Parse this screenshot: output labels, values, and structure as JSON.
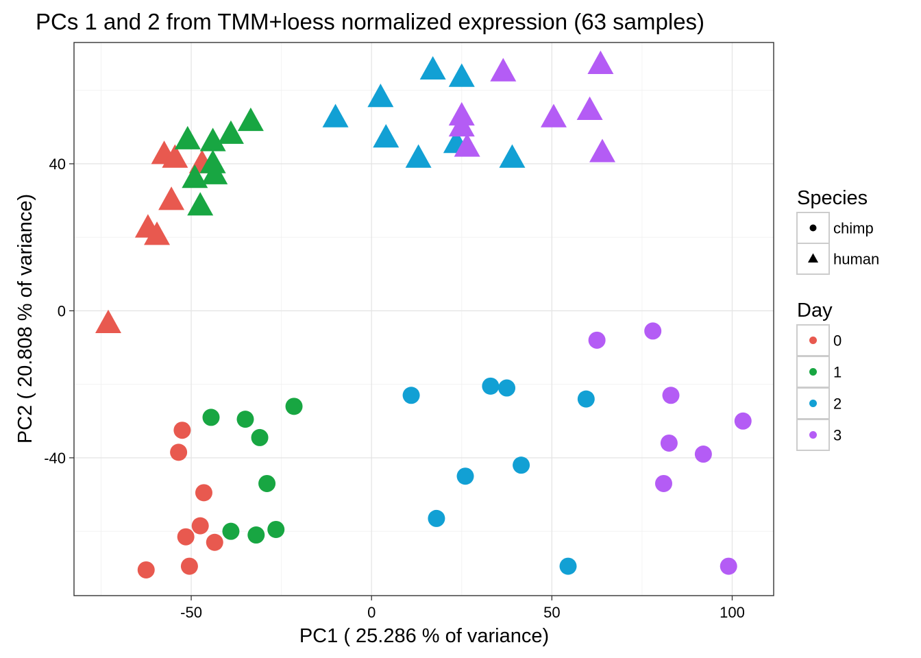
{
  "chart_data": {
    "type": "scatter",
    "title": "PCs 1 and 2 from TMM+loess normalized expression (63 samples)",
    "xlabel": "PC1 ( 25.286 % of variance)",
    "ylabel": "PC2 ( 20.808 % of variance)",
    "xlim": [
      -82.5,
      111.5
    ],
    "ylim": [
      -77.5,
      73
    ],
    "x_ticks": [
      -50,
      0,
      50,
      100
    ],
    "x_tick_labels": [
      "-50",
      "0",
      "50",
      "100"
    ],
    "y_ticks": [
      -40,
      0,
      40
    ],
    "y_tick_labels": [
      "-40",
      "0",
      "40"
    ],
    "grid": true,
    "legends": {
      "species": {
        "title": "Species",
        "entries": [
          {
            "label": "chimp",
            "shape": "circle"
          },
          {
            "label": "human",
            "shape": "triangle"
          }
        ]
      },
      "day": {
        "title": "Day",
        "entries": [
          {
            "label": "0",
            "color": "#E8594F"
          },
          {
            "label": "1",
            "color": "#18A642"
          },
          {
            "label": "2",
            "color": "#12A0D4"
          },
          {
            "label": "3",
            "color": "#B45CF5"
          }
        ]
      }
    },
    "legend_position": "right",
    "points": [
      {
        "x": -73.0,
        "y": -3.5,
        "species": "human",
        "day": "0"
      },
      {
        "x": -62.0,
        "y": 22.5,
        "species": "human",
        "day": "0"
      },
      {
        "x": -59.5,
        "y": 20.5,
        "species": "human",
        "day": "0"
      },
      {
        "x": -55.5,
        "y": 30.0,
        "species": "human",
        "day": "0"
      },
      {
        "x": -57.5,
        "y": 42.5,
        "species": "human",
        "day": "0"
      },
      {
        "x": -54.5,
        "y": 41.5,
        "species": "human",
        "day": "0"
      },
      {
        "x": -47.0,
        "y": 40.0,
        "species": "human",
        "day": "0"
      },
      {
        "x": -51.0,
        "y": 46.5,
        "species": "human",
        "day": "1"
      },
      {
        "x": -44.0,
        "y": 46.0,
        "species": "human",
        "day": "1"
      },
      {
        "x": -39.0,
        "y": 48.0,
        "species": "human",
        "day": "1"
      },
      {
        "x": -33.5,
        "y": 51.5,
        "species": "human",
        "day": "1"
      },
      {
        "x": -44.0,
        "y": 40.0,
        "species": "human",
        "day": "1"
      },
      {
        "x": -49.0,
        "y": 36.0,
        "species": "human",
        "day": "1"
      },
      {
        "x": -43.5,
        "y": 37.0,
        "species": "human",
        "day": "1"
      },
      {
        "x": -47.5,
        "y": 28.5,
        "species": "human",
        "day": "1"
      },
      {
        "x": -10.0,
        "y": 52.5,
        "species": "human",
        "day": "2"
      },
      {
        "x": 2.5,
        "y": 58.0,
        "species": "human",
        "day": "2"
      },
      {
        "x": 4.0,
        "y": 47.0,
        "species": "human",
        "day": "2"
      },
      {
        "x": 17.0,
        "y": 65.5,
        "species": "human",
        "day": "2"
      },
      {
        "x": 25.0,
        "y": 63.5,
        "species": "human",
        "day": "2"
      },
      {
        "x": 13.0,
        "y": 41.5,
        "species": "human",
        "day": "2"
      },
      {
        "x": 23.5,
        "y": 45.5,
        "species": "human",
        "day": "2"
      },
      {
        "x": 39.0,
        "y": 41.5,
        "species": "human",
        "day": "2"
      },
      {
        "x": 36.5,
        "y": 65.0,
        "species": "human",
        "day": "3"
      },
      {
        "x": 63.5,
        "y": 67.0,
        "species": "human",
        "day": "3"
      },
      {
        "x": 25.0,
        "y": 53.0,
        "species": "human",
        "day": "3"
      },
      {
        "x": 25.0,
        "y": 50.0,
        "species": "human",
        "day": "3"
      },
      {
        "x": 26.5,
        "y": 44.5,
        "species": "human",
        "day": "3"
      },
      {
        "x": 50.5,
        "y": 52.5,
        "species": "human",
        "day": "3"
      },
      {
        "x": 60.5,
        "y": 54.5,
        "species": "human",
        "day": "3"
      },
      {
        "x": 64.0,
        "y": 43.0,
        "species": "human",
        "day": "3"
      },
      {
        "x": -52.5,
        "y": -32.5,
        "species": "chimp",
        "day": "0"
      },
      {
        "x": -53.5,
        "y": -38.5,
        "species": "chimp",
        "day": "0"
      },
      {
        "x": -46.5,
        "y": -49.5,
        "species": "chimp",
        "day": "0"
      },
      {
        "x": -47.5,
        "y": -58.5,
        "species": "chimp",
        "day": "0"
      },
      {
        "x": -51.5,
        "y": -61.5,
        "species": "chimp",
        "day": "0"
      },
      {
        "x": -43.5,
        "y": -63.0,
        "species": "chimp",
        "day": "0"
      },
      {
        "x": -62.5,
        "y": -70.5,
        "species": "chimp",
        "day": "0"
      },
      {
        "x": -50.5,
        "y": -69.5,
        "species": "chimp",
        "day": "0"
      },
      {
        "x": -44.5,
        "y": -29.0,
        "species": "chimp",
        "day": "1"
      },
      {
        "x": -35.0,
        "y": -29.5,
        "species": "chimp",
        "day": "1"
      },
      {
        "x": -31.0,
        "y": -34.5,
        "species": "chimp",
        "day": "1"
      },
      {
        "x": -21.5,
        "y": -26.0,
        "species": "chimp",
        "day": "1"
      },
      {
        "x": -29.0,
        "y": -47.0,
        "species": "chimp",
        "day": "1"
      },
      {
        "x": -39.0,
        "y": -60.0,
        "species": "chimp",
        "day": "1"
      },
      {
        "x": -32.0,
        "y": -61.0,
        "species": "chimp",
        "day": "1"
      },
      {
        "x": -26.5,
        "y": -59.5,
        "species": "chimp",
        "day": "1"
      },
      {
        "x": 11.0,
        "y": -23.0,
        "species": "chimp",
        "day": "2"
      },
      {
        "x": 33.0,
        "y": -20.5,
        "species": "chimp",
        "day": "2"
      },
      {
        "x": 37.5,
        "y": -21.0,
        "species": "chimp",
        "day": "2"
      },
      {
        "x": 59.5,
        "y": -24.0,
        "species": "chimp",
        "day": "2"
      },
      {
        "x": 26.0,
        "y": -45.0,
        "species": "chimp",
        "day": "2"
      },
      {
        "x": 41.5,
        "y": -42.0,
        "species": "chimp",
        "day": "2"
      },
      {
        "x": 18.0,
        "y": -56.5,
        "species": "chimp",
        "day": "2"
      },
      {
        "x": 54.5,
        "y": -69.5,
        "species": "chimp",
        "day": "2"
      },
      {
        "x": 62.5,
        "y": -8.0,
        "species": "chimp",
        "day": "3"
      },
      {
        "x": 78.0,
        "y": -5.5,
        "species": "chimp",
        "day": "3"
      },
      {
        "x": 83.0,
        "y": -23.0,
        "species": "chimp",
        "day": "3"
      },
      {
        "x": 103.0,
        "y": -30.0,
        "species": "chimp",
        "day": "3"
      },
      {
        "x": 82.5,
        "y": -36.0,
        "species": "chimp",
        "day": "3"
      },
      {
        "x": 92.0,
        "y": -39.0,
        "species": "chimp",
        "day": "3"
      },
      {
        "x": 81.0,
        "y": -47.0,
        "species": "chimp",
        "day": "3"
      },
      {
        "x": 99.0,
        "y": -69.5,
        "species": "chimp",
        "day": "3"
      }
    ]
  }
}
